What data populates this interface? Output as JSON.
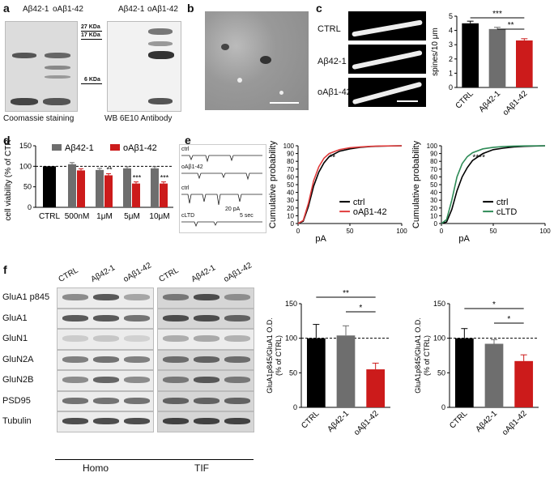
{
  "panel_a": {
    "label": "a",
    "coomassie_lanes": [
      "Aβ42-1",
      "oAβ1-42"
    ],
    "wb_lanes": [
      "Aβ42-1",
      "oAβ1-42"
    ],
    "markers": [
      "27 KDa",
      "17 KDa",
      "6 KDa"
    ],
    "caption_left": "Coomassie staining",
    "caption_right": "WB 6E10 Antibody"
  },
  "panel_b": {
    "label": "b"
  },
  "panel_c": {
    "label": "c",
    "rows": [
      "CTRL",
      "Aβ42-1",
      "oAβ1-42"
    ],
    "chart_data": {
      "type": "bar",
      "categories": [
        "CTRL",
        "Aβ42-1",
        "oAβ1-42"
      ],
      "values": [
        4.5,
        4.1,
        3.3
      ],
      "errors": [
        0.15,
        0.12,
        0.12
      ],
      "colors": [
        "#000000",
        "#6e6e6e",
        "#cc1b1b"
      ],
      "ylabel": "spines/10 μm",
      "ylim": [
        0,
        5
      ],
      "yticks": [
        "0",
        "1",
        "2",
        "3",
        "4",
        "5"
      ],
      "significance": [
        "***",
        "**"
      ]
    }
  },
  "panel_d": {
    "label": "d",
    "legend": [
      "Aβ42-1",
      "oAβ1-42"
    ],
    "chart_data": {
      "type": "bar",
      "categories": [
        "CTRL",
        "500nM",
        "1μM",
        "5μM",
        "10μM"
      ],
      "ylabel": "cell viability (% of CTRL)",
      "ylim": [
        0,
        150
      ],
      "yticks": [
        "0",
        "50",
        "100",
        "150"
      ],
      "ctrl_value": 100,
      "series": [
        {
          "name": "Aβ42-1",
          "color": "#6e6e6e",
          "values": [
            null,
            105,
            91,
            95,
            95
          ]
        },
        {
          "name": "oAβ1-42",
          "color": "#cc1b1b",
          "values": [
            null,
            90,
            78,
            58,
            58
          ]
        }
      ],
      "significance": [
        "",
        "",
        "**",
        "***",
        "***"
      ]
    }
  },
  "panel_e": {
    "label": "e",
    "trace_labels": [
      "ctrl",
      "oAβ1-42",
      "ctrl",
      "cLTD"
    ],
    "scale_amp": "20 pA",
    "scale_time": "5 sec",
    "chart_data": [
      {
        "type": "line",
        "xlabel": "pA",
        "ylabel": "Cumulative probability",
        "xlim": [
          0,
          100
        ],
        "ylim": [
          0,
          100
        ],
        "xticks": [
          "0",
          "50",
          "100"
        ],
        "yticks": [
          "0",
          "10",
          "20",
          "30",
          "40",
          "50",
          "60",
          "70",
          "80",
          "90",
          "100"
        ],
        "significance": "**",
        "series": [
          {
            "name": "ctrl",
            "color": "#000000",
            "x": [
              0,
              5,
              10,
              15,
              20,
              25,
              30,
              40,
              50,
              60,
              70,
              80,
              100
            ],
            "y": [
              0,
              3,
              22,
              48,
              66,
              78,
              86,
              93,
              96,
              98,
              99,
              99.5,
              100
            ]
          },
          {
            "name": "oAβ1-42",
            "color": "#e03c3c",
            "x": [
              0,
              5,
              10,
              15,
              20,
              25,
              30,
              40,
              50,
              60,
              70,
              80,
              100
            ],
            "y": [
              0,
              4,
              26,
              55,
              73,
              84,
              90,
              95,
              97.5,
              98.5,
              99.3,
              99.7,
              100
            ]
          }
        ]
      },
      {
        "type": "line",
        "xlabel": "pA",
        "ylabel": "Cumulative probability",
        "xlim": [
          0,
          100
        ],
        "ylim": [
          0,
          100
        ],
        "xticks": [
          "0",
          "50",
          "100"
        ],
        "yticks": [
          "0",
          "10",
          "20",
          "30",
          "40",
          "50",
          "60",
          "70",
          "80",
          "90",
          "100"
        ],
        "significance": "****",
        "series": [
          {
            "name": "ctrl",
            "color": "#000000",
            "x": [
              0,
              5,
              10,
              15,
              20,
              25,
              30,
              40,
              50,
              60,
              70,
              80,
              100
            ],
            "y": [
              0,
              2,
              18,
              42,
              60,
              72,
              81,
              90,
              95,
              97,
              98.5,
              99.3,
              100
            ]
          },
          {
            "name": "cLTD",
            "color": "#2e8b57",
            "x": [
              0,
              5,
              10,
              15,
              20,
              25,
              30,
              40,
              50,
              60,
              70,
              80,
              100
            ],
            "y": [
              0,
              5,
              30,
              60,
              77,
              86,
              91,
              96,
              98,
              99,
              99.5,
              99.8,
              100
            ]
          }
        ]
      }
    ]
  },
  "panel_f": {
    "label": "f",
    "rows": [
      "GluA1 p845",
      "GluA1",
      "GluN1",
      "GluN2A",
      "GluN2B",
      "PSD95",
      "Tubulin"
    ],
    "lanes": [
      "CTRL",
      "Aβ42-1",
      "oAβ1-42"
    ],
    "groups": [
      "Homo",
      "TIF"
    ],
    "chart_data": [
      {
        "type": "bar",
        "group": "Homo",
        "categories": [
          "CTRL",
          "Aβ42-1",
          "oAβ1-42"
        ],
        "values": [
          100,
          104,
          55
        ],
        "errors": [
          20,
          14,
          9
        ],
        "colors": [
          "#000000",
          "#6e6e6e",
          "#cc1b1b"
        ],
        "ylabel": "GluA1p845/GluA1 O.D. (% of CTRL)",
        "ylim": [
          0,
          150
        ],
        "yticks": [
          "0",
          "50",
          "100",
          "150"
        ],
        "significance": [
          "**",
          "*"
        ]
      },
      {
        "type": "bar",
        "group": "TIF",
        "categories": [
          "CTRL",
          "Aβ42-1",
          "oAβ1-42"
        ],
        "values": [
          100,
          92,
          67
        ],
        "errors": [
          14,
          6,
          9
        ],
        "colors": [
          "#000000",
          "#6e6e6e",
          "#cc1b1b"
        ],
        "ylabel": "GluA1p845/GluA1 O.D. (% of CTRL)",
        "ylim": [
          0,
          150
        ],
        "yticks": [
          "0",
          "50",
          "100",
          "150"
        ],
        "significance": [
          "*",
          "*"
        ]
      }
    ]
  }
}
